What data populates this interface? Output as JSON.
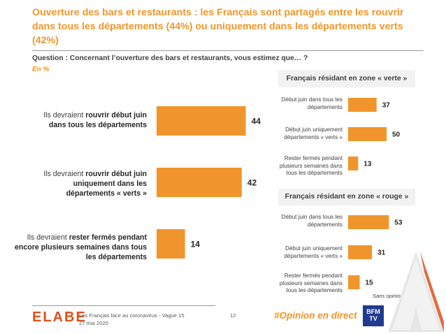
{
  "title": "Ouverture des bars et restaurants : les Français sont partagés entre les rouvrir dans tous les départements (44%) ou uniquement dans les départements verts (42%)",
  "question": "Question : Concernant l’ouverture des bars et restaurants, vous estimez que… ?",
  "unit": "En %",
  "main_labels": [
    {
      "pre": "Ils devraient ",
      "bold": "rouvrir début juin dans tous les départements",
      "post": ""
    },
    {
      "pre": "Ils devraient ",
      "bold": "rouvrir début juin uniquement dans les départements « verts »",
      "post": ""
    },
    {
      "pre": "Ils devraient ",
      "bold": "rester fermés pendant encore plusieurs semaines dans tous les départements",
      "post": ""
    }
  ],
  "chart_data": [
    {
      "type": "bar",
      "orientation": "horizontal",
      "title": "",
      "categories": [
        "Ils devraient rouvrir début juin dans tous les départements",
        "Ils devraient rouvrir début juin uniquement dans les départements « verts »",
        "Ils devraient rester fermés pendant encore plusieurs semaines dans tous les départements"
      ],
      "values": [
        44,
        42,
        14
      ],
      "unit": "%",
      "color": "#F0952B"
    },
    {
      "type": "bar",
      "orientation": "horizontal",
      "title": "Français résidant en zone « verte »",
      "categories": [
        "Début juin dans tous les départements",
        "Début juin uniquement départements « verts »",
        "Rester fermés pendant plusieurs semaines dans tous les départements"
      ],
      "values": [
        37,
        50,
        13
      ],
      "unit": "%",
      "color": "#F0952B"
    },
    {
      "type": "bar",
      "orientation": "horizontal",
      "title": "Français résidant en zone « rouge »",
      "categories": [
        "Début juin dans tous les départements",
        "Début juin uniquement départements « verts »",
        "Rester fermés pendant plusieurs semaines dans tous les départements"
      ],
      "values": [
        53,
        31,
        15
      ],
      "unit": "%",
      "color": "#F0952B",
      "annotation": "Sans opinion 1%"
    }
  ],
  "green_labels": [
    "Début juin dans tous les départements",
    "Début juin uniquement départements « verts »",
    "Rester fermés pendant plusieurs semaines dans tous les départements"
  ],
  "red_labels": [
    "Début juin dans tous les départements",
    "Début juin uniquement départements « verts »",
    "Rester fermés pendant plusieurs semaines dans tous les départements"
  ],
  "footer": {
    "logo": "ELABE",
    "source": "Les Français face au coronavirus - Vague 15",
    "date": "27 mai 2020",
    "page": "12",
    "hashtag": "#Opinion en direct",
    "partner_logo": "BFM TV"
  },
  "colors": {
    "accent": "#F0952B",
    "text": "#404040"
  }
}
